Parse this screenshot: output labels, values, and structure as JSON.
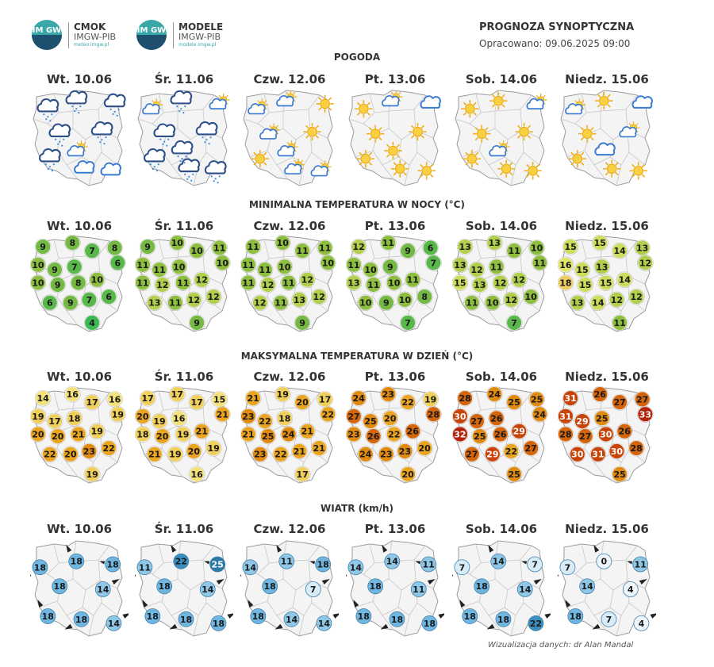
{
  "header": {
    "logo1": {
      "l1": "CMOK",
      "l2": "IMGW-PIB",
      "url": "meteo.imgw.pl",
      "badge": "IM GW"
    },
    "logo2": {
      "l1": "MODELE",
      "l2": "IMGW-PIB",
      "url": "modele.imgw.pl",
      "badge": "IM GW"
    },
    "title": "PROGNOZA SYNOPTYCZNA",
    "subtitle": "Opracowano: 09.06.2025 09:00"
  },
  "days": [
    "Wt. 10.06",
    "Śr. 11.06",
    "Czw. 12.06",
    "Pt. 13.06",
    "Sob. 14.06",
    "Niedz. 15.06"
  ],
  "sections": {
    "weather": "POGODA",
    "tmin": "MINIMALNA TEMPERATURA W NOCY (°C)",
    "tmax": "MAKSYMALNA TEMPERATURA W DZIEŃ (°C)",
    "wind": "WIATR (km/h)"
  },
  "weather": [
    [
      "rain-cloud",
      "rain-cloud",
      "rain-cloud",
      "rain-cloud",
      "rain-cloud",
      "rain-cloud",
      "cloud",
      "cloud",
      "sun-cloud"
    ],
    [
      "sun-cloud",
      "rain-cloud",
      "sun-cloud",
      "rain-cloud",
      "rain-cloud",
      "rain-cloud",
      "rain-cloud",
      "rain-cloud",
      "rain-cloud"
    ],
    [
      "sun-cloud",
      "sun-cloud",
      "sun",
      "sun-cloud",
      "sun",
      "sun",
      "sun-cloud",
      "sun-cloud",
      "sun-cloud"
    ],
    [
      "sun",
      "sun-cloud",
      "cloud",
      "sun",
      "sun",
      "sun",
      "sun",
      "sun",
      "sun"
    ],
    [
      "sun",
      "sun",
      "sun-cloud",
      "sun",
      "sun",
      "sun",
      "sun",
      "sun",
      "sun-cloud"
    ],
    [
      "sun-cloud",
      "sun",
      "cloud",
      "sun",
      "sun-cloud",
      "sun",
      "sun",
      "sun",
      "cloud"
    ]
  ],
  "tmin": [
    [
      9,
      8,
      7,
      8,
      10,
      9,
      7,
      6,
      10,
      9,
      8,
      10,
      6,
      9,
      7,
      6,
      4
    ],
    [
      9,
      10,
      10,
      11,
      11,
      11,
      10,
      10,
      11,
      12,
      11,
      12,
      13,
      11,
      12,
      12,
      9
    ],
    [
      11,
      10,
      11,
      11,
      11,
      11,
      10,
      10,
      11,
      12,
      11,
      12,
      12,
      11,
      13,
      12,
      9
    ],
    [
      12,
      11,
      9,
      6,
      11,
      10,
      9,
      7,
      13,
      11,
      10,
      11,
      10,
      9,
      10,
      8,
      7
    ],
    [
      13,
      13,
      11,
      10,
      13,
      12,
      11,
      11,
      15,
      13,
      12,
      12,
      11,
      10,
      12,
      10,
      7
    ],
    [
      15,
      15,
      14,
      13,
      16,
      15,
      13,
      12,
      18,
      15,
      15,
      14,
      13,
      14,
      12,
      12,
      11
    ]
  ],
  "tmax": [
    [
      14,
      16,
      17,
      16,
      19,
      17,
      18,
      19,
      20,
      20,
      21,
      19,
      22,
      20,
      23,
      22,
      19
    ],
    [
      17,
      17,
      17,
      15,
      20,
      19,
      16,
      21,
      18,
      20,
      19,
      21,
      21,
      19,
      20,
      19,
      16
    ],
    [
      21,
      19,
      20,
      17,
      23,
      22,
      18,
      22,
      21,
      25,
      24,
      21,
      23,
      22,
      21,
      21,
      17
    ],
    [
      24,
      23,
      22,
      19,
      27,
      25,
      20,
      28,
      23,
      26,
      22,
      26,
      24,
      23,
      23,
      20,
      20
    ],
    [
      28,
      24,
      25,
      25,
      30,
      27,
      26,
      24,
      32,
      25,
      26,
      29,
      27,
      29,
      22,
      27,
      25
    ],
    [
      31,
      26,
      27,
      27,
      31,
      29,
      25,
      33,
      28,
      27,
      30,
      26,
      30,
      31,
      30,
      28,
      25
    ]
  ],
  "wind": [
    [
      18,
      18,
      18,
      18,
      14,
      18,
      18,
      14
    ],
    [
      11,
      22,
      25,
      18,
      14,
      18,
      18,
      18
    ],
    [
      14,
      11,
      18,
      18,
      7,
      18,
      14,
      14
    ],
    [
      14,
      14,
      11,
      18,
      11,
      18,
      18,
      18
    ],
    [
      7,
      14,
      7,
      18,
      14,
      18,
      18,
      22
    ],
    [
      7,
      0,
      11,
      14,
      4,
      18,
      7,
      4
    ]
  ],
  "colors": {
    "weather_cloud": "#2c5a9e",
    "tmin_scale": {
      "4": "#3cb850",
      "6": "#58b94a",
      "8": "#73b944",
      "10": "#8ebe40",
      "12": "#b1cf4d",
      "14": "#cddc5a",
      "16": "#e2e46a",
      "18": "#eccc60"
    },
    "tmax_scale": {
      "14": "#f3e27a",
      "17": "#f0cf5a",
      "20": "#eaa420",
      "23": "#e08a10",
      "26": "#d4650a",
      "29": "#c84408",
      "32": "#b4220a"
    },
    "wind_scale": {
      "0": "#eef6fb",
      "7": "#d8ecf8",
      "11": "#8fc7e6",
      "18": "#6fb6e0",
      "22": "#3a8fbf",
      "25": "#2c7aa6"
    }
  },
  "credit": "Wizualizacja danych: dr Alan Mandal"
}
